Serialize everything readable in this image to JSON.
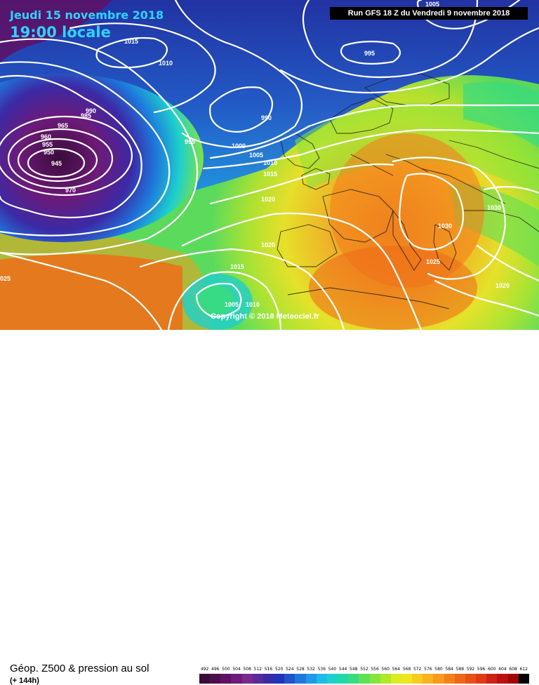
{
  "header": {
    "date": "Jeudi 15 novembre 2018",
    "time": "19:00 locale",
    "run": "Run GFS 18 Z du Vendredi 9 novembre 2018"
  },
  "footer": {
    "title": "Géop. Z500 & pression au sol",
    "subtitle": "(+ 144h)",
    "copyright": "Copyright © 2018 Meteociel.fr"
  },
  "scale": {
    "labels": [
      "492",
      "496",
      "500",
      "504",
      "508",
      "512",
      "516",
      "520",
      "524",
      "528",
      "532",
      "536",
      "540",
      "544",
      "548",
      "552",
      "556",
      "560",
      "564",
      "568",
      "572",
      "576",
      "580",
      "584",
      "588",
      "592",
      "596",
      "600",
      "604",
      "608",
      "612"
    ],
    "colors": [
      "#3a0b3a",
      "#4b0d4e",
      "#5e1064",
      "#6d1a78",
      "#7a2a8c",
      "#5a2a9a",
      "#3b2aa6",
      "#1f34b8",
      "#1f54cc",
      "#1e78dc",
      "#1e9ae8",
      "#1ebbe8",
      "#1ed0cc",
      "#20d8a8",
      "#38dc80",
      "#5ee056",
      "#88e43a",
      "#b0e82a",
      "#d8ee22",
      "#f0e620",
      "#f8cc20",
      "#fab41e",
      "#f89a1c",
      "#f4801a",
      "#ee6818",
      "#e85016",
      "#e03a14",
      "#d02212",
      "#bc1010",
      "#a00808",
      "#000000"
    ]
  },
  "isobars": [
    {
      "label": "1015",
      "cls": "a"
    },
    {
      "label": "1010",
      "cls": "b"
    },
    {
      "label": "995",
      "cls": "c"
    },
    {
      "label": "990",
      "cls": "d"
    },
    {
      "label": "990",
      "cls": "e"
    },
    {
      "label": "985",
      "cls": "f"
    },
    {
      "label": "965",
      "cls": "g"
    },
    {
      "label": "960",
      "cls": "h"
    },
    {
      "label": "955",
      "cls": "i"
    },
    {
      "label": "950",
      "cls": "j"
    },
    {
      "label": "945",
      "cls": "k"
    },
    {
      "label": "970",
      "cls": "l"
    },
    {
      "label": "995",
      "cls": "m"
    },
    {
      "label": "1000",
      "cls": "n"
    },
    {
      "label": "1005",
      "cls": "o"
    },
    {
      "label": "1010",
      "cls": "p"
    },
    {
      "label": "1015",
      "cls": "q"
    },
    {
      "label": "1020",
      "cls": "r"
    },
    {
      "label": "1020",
      "cls": "s"
    },
    {
      "label": "1015",
      "cls": "t"
    },
    {
      "label": "025",
      "cls": "u"
    },
    {
      "label": "1005",
      "cls": "v"
    },
    {
      "label": "1010",
      "cls": "w"
    },
    {
      "label": "1005",
      "cls": "x"
    },
    {
      "label": "1030",
      "cls": "y"
    },
    {
      "label": "1030",
      "cls": "z"
    },
    {
      "label": "1025",
      "cls": "aa"
    },
    {
      "label": "1020",
      "cls": "ab"
    }
  ]
}
